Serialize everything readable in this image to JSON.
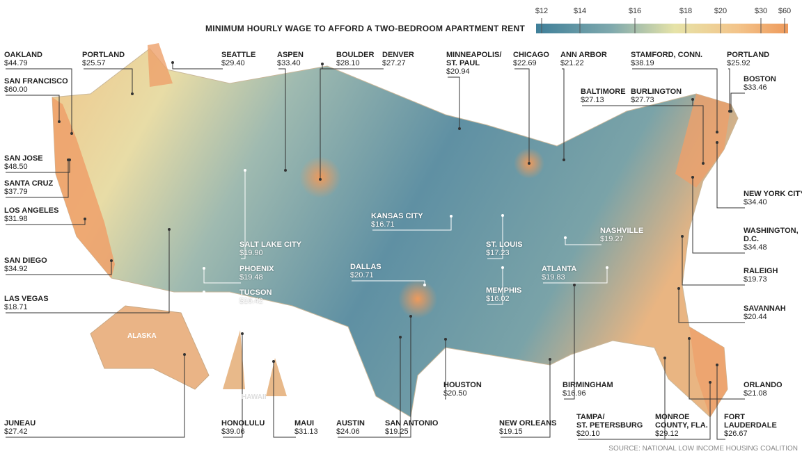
{
  "title": "MINIMUM HOURLY WAGE TO AFFORD A TWO-BEDROOM APARTMENT RENT",
  "legend": {
    "ticks": [
      "$12",
      "$14",
      "$16",
      "$18",
      "$20",
      "$30",
      "$60"
    ]
  },
  "regions": [
    "ALASKA",
    "HAWAII"
  ],
  "cities": [
    {
      "name_lines": [
        "OAKLAND"
      ],
      "wage": "$44.79"
    },
    {
      "name_lines": [
        "SAN FRANCISCO"
      ],
      "wage": "$60.00"
    },
    {
      "name_lines": [
        "SAN JOSE"
      ],
      "wage": "$48.50"
    },
    {
      "name_lines": [
        "SANTA CRUZ"
      ],
      "wage": "$37.79"
    },
    {
      "name_lines": [
        "LOS ANGELES"
      ],
      "wage": "$31.98"
    },
    {
      "name_lines": [
        "SAN DIEGO"
      ],
      "wage": "$34.92"
    },
    {
      "name_lines": [
        "LAS VEGAS"
      ],
      "wage": "$18.71"
    },
    {
      "name_lines": [
        "PORTLAND"
      ],
      "wage": "$25.57"
    },
    {
      "name_lines": [
        "SEATTLE"
      ],
      "wage": "$29.40"
    },
    {
      "name_lines": [
        "ASPEN"
      ],
      "wage": "$33.40"
    },
    {
      "name_lines": [
        "BOULDER"
      ],
      "wage": "$28.10"
    },
    {
      "name_lines": [
        "DENVER"
      ],
      "wage": "$27.27"
    },
    {
      "name_lines": [
        "MINNEAPOLIS/",
        "ST. PAUL"
      ],
      "wage": "$20.94"
    },
    {
      "name_lines": [
        "CHICAGO"
      ],
      "wage": "$22.69"
    },
    {
      "name_lines": [
        "ANN ARBOR"
      ],
      "wage": "$21.22"
    },
    {
      "name_lines": [
        "STAMFORD, CONN."
      ],
      "wage": "$38.19"
    },
    {
      "name_lines": [
        "PORTLAND"
      ],
      "wage": "$25.92"
    },
    {
      "name_lines": [
        "BOSTON"
      ],
      "wage": "$33.46"
    },
    {
      "name_lines": [
        "BALTIMORE"
      ],
      "wage": "$27.13"
    },
    {
      "name_lines": [
        "BURLINGTON"
      ],
      "wage": "$27.73"
    },
    {
      "name_lines": [
        "NEW YORK CITY"
      ],
      "wage": "$34.40"
    },
    {
      "name_lines": [
        "WASHINGTON,",
        "D.C."
      ],
      "wage": "$34.48"
    },
    {
      "name_lines": [
        "RALEIGH"
      ],
      "wage": "$19.73"
    },
    {
      "name_lines": [
        "SAVANNAH"
      ],
      "wage": "$20.44"
    },
    {
      "name_lines": [
        "ORLANDO"
      ],
      "wage": "$21.08"
    },
    {
      "name_lines": [
        "FORT",
        "LAUDERDALE"
      ],
      "wage": "$26.67"
    },
    {
      "name_lines": [
        "MONROE",
        "COUNTY, FLA."
      ],
      "wage": "$29.12"
    },
    {
      "name_lines": [
        "TAMPA/",
        "ST. PETERSBURG"
      ],
      "wage": "$20.10"
    },
    {
      "name_lines": [
        "BIRMINGHAM"
      ],
      "wage": "$16.96"
    },
    {
      "name_lines": [
        "NEW ORLEANS"
      ],
      "wage": "$19.15"
    },
    {
      "name_lines": [
        "HOUSTON"
      ],
      "wage": "$20.50"
    },
    {
      "name_lines": [
        "SAN ANTONIO"
      ],
      "wage": "$19.25"
    },
    {
      "name_lines": [
        "AUSTIN"
      ],
      "wage": "$24.06"
    },
    {
      "name_lines": [
        "MAUI"
      ],
      "wage": "$31.13"
    },
    {
      "name_lines": [
        "HONOLULU"
      ],
      "wage": "$39.06"
    },
    {
      "name_lines": [
        "JUNEAU"
      ],
      "wage": "$27.42"
    },
    {
      "name_lines": [
        "SALT LAKE CITY"
      ],
      "wage": "$19.90"
    },
    {
      "name_lines": [
        "PHOENIX"
      ],
      "wage": "$19.48"
    },
    {
      "name_lines": [
        "TUCSON"
      ],
      "wage": "$16.42"
    },
    {
      "name_lines": [
        "KANSAS CITY"
      ],
      "wage": "$16.71"
    },
    {
      "name_lines": [
        "DALLAS"
      ],
      "wage": "$20.71"
    },
    {
      "name_lines": [
        "ST. LOUIS"
      ],
      "wage": "$17.23"
    },
    {
      "name_lines": [
        "MEMPHIS"
      ],
      "wage": "$16.02"
    },
    {
      "name_lines": [
        "NASHVILLE"
      ],
      "wage": "$19.27"
    },
    {
      "name_lines": [
        "ATLANTA"
      ],
      "wage": "$19.83"
    }
  ],
  "source": "SOURCE: NATIONAL LOW INCOME HOUSING COALITION"
}
